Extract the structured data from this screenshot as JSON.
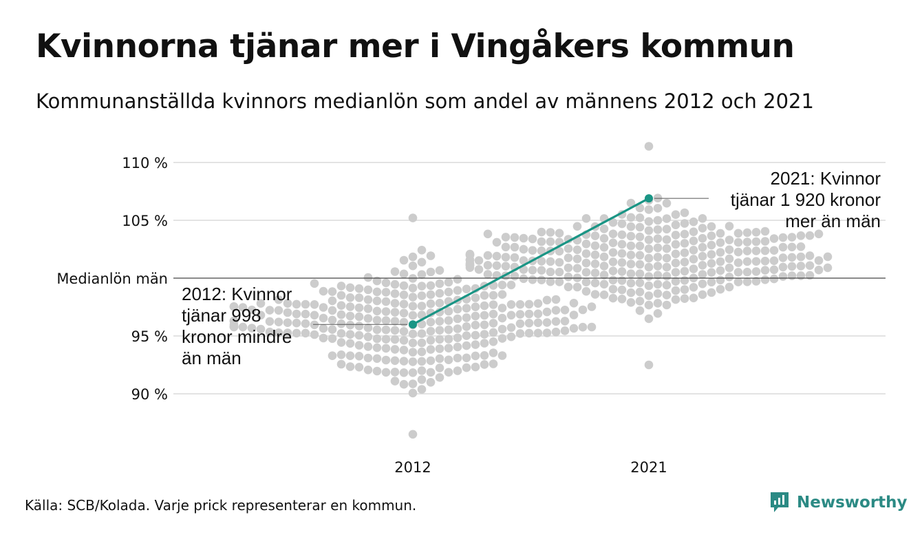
{
  "title": "Kvinnorna tjänar mer i Vingåkers kommun",
  "subtitle": "Kommunanställda kvinnors medianlön som andel av männens 2012 och 2021",
  "source": "Källa: SCB/Kolada. Varje prick representerar en kommun.",
  "brand": "Newsworthy",
  "colors": {
    "highlight": "#1a9585",
    "dots": "#cccccc",
    "grid": "#e3e3e3",
    "reference": "#444444"
  },
  "chart_data": {
    "type": "scatter",
    "x_categories": [
      "2012",
      "2021"
    ],
    "y_ticks": [
      {
        "value": 90,
        "label": "90 %"
      },
      {
        "value": 95,
        "label": "95 %"
      },
      {
        "value": 100,
        "label": "Medianlön män"
      },
      {
        "value": 105,
        "label": "105 %"
      },
      {
        "value": 110,
        "label": "110 %"
      }
    ],
    "ylim": [
      86,
      112
    ],
    "reference_line": 100,
    "series": [
      {
        "name": "Vingåkers kommun",
        "points": [
          {
            "x": "2012",
            "y": 96.0
          },
          {
            "x": "2021",
            "y": 106.9
          }
        ]
      }
    ],
    "distribution": [
      {
        "x": "2012",
        "min": 86.5,
        "max": 105.2,
        "center": 96.0,
        "spread": 4.3
      },
      {
        "x": "2021",
        "min": 92.5,
        "max": 111.4,
        "center": 101.6,
        "spread": 3.6
      }
    ],
    "annotations": [
      {
        "x": "2012",
        "lines": [
          "2012: Kvinnor",
          "tjänar 998",
          "kronor mindre",
          "än män"
        ]
      },
      {
        "x": "2021",
        "lines": [
          "2021: Kvinnor",
          "tjänar 1 920 kronor",
          "mer än män"
        ]
      }
    ]
  }
}
